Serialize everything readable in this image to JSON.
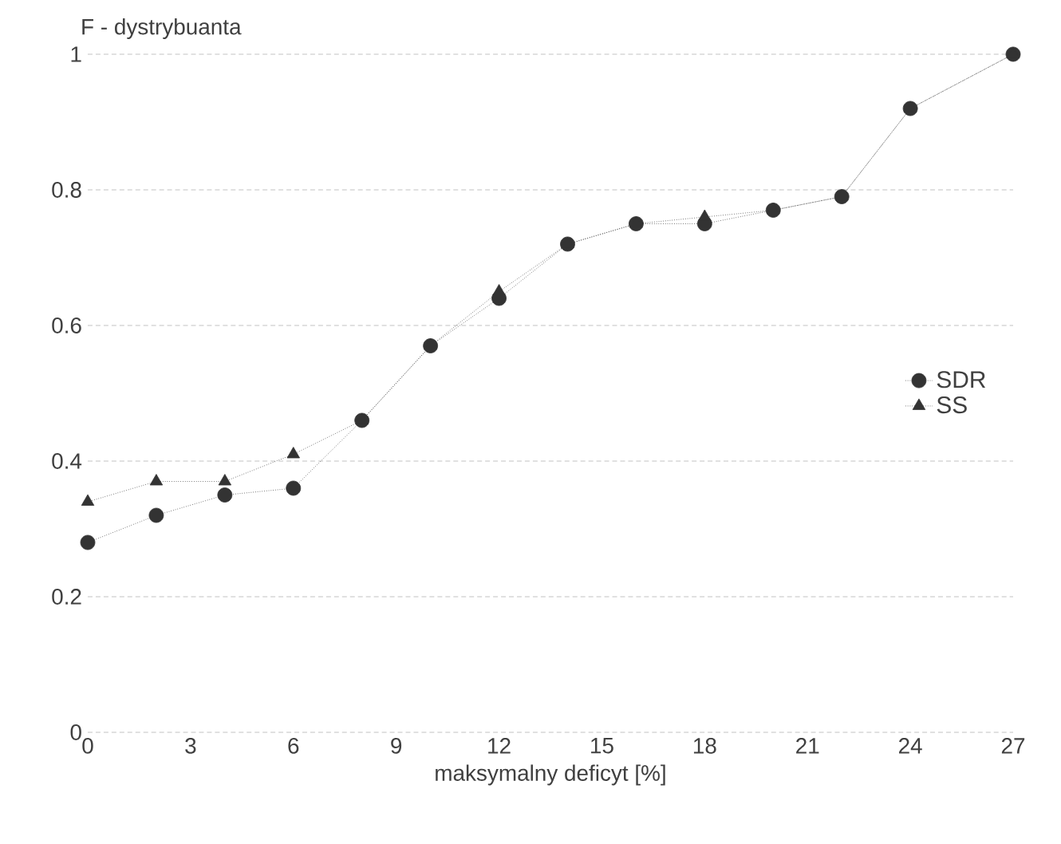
{
  "chart_data": {
    "type": "line",
    "ylabel": "F - dystrybuanta",
    "xlabel": "maksymalny deficyt [%]",
    "x": [
      0,
      2,
      4,
      6,
      8,
      10,
      12,
      14,
      16,
      18,
      20,
      22,
      24,
      27
    ],
    "series": [
      {
        "name": "SDR",
        "color": "#333333",
        "marker": "circle",
        "values": [
          0.28,
          0.32,
          0.35,
          0.36,
          0.46,
          0.57,
          0.64,
          0.72,
          0.75,
          0.75,
          0.77,
          0.79,
          0.92,
          1.0
        ]
      },
      {
        "name": "SS",
        "color": "#333333",
        "marker": "triangle",
        "values": [
          0.34,
          0.37,
          0.37,
          0.41,
          0.46,
          0.57,
          0.65,
          0.72,
          0.75,
          0.76,
          0.77,
          0.79,
          0.92,
          1.0
        ]
      }
    ],
    "xlim": [
      0,
      27
    ],
    "ylim": [
      0,
      1
    ],
    "xticks": [
      0,
      3,
      6,
      9,
      12,
      15,
      18,
      21,
      24,
      27
    ],
    "yticks": [
      0,
      {
        "value": 0.2,
        "label": "0.2"
      },
      {
        "value": 0.4,
        "label": "0.4"
      },
      {
        "value": 0.6,
        "label": "0.6"
      },
      {
        "value": 0.8,
        "label": "0.8"
      },
      1
    ],
    "grid": "y",
    "legend": "right",
    "line_style": "dotted"
  }
}
